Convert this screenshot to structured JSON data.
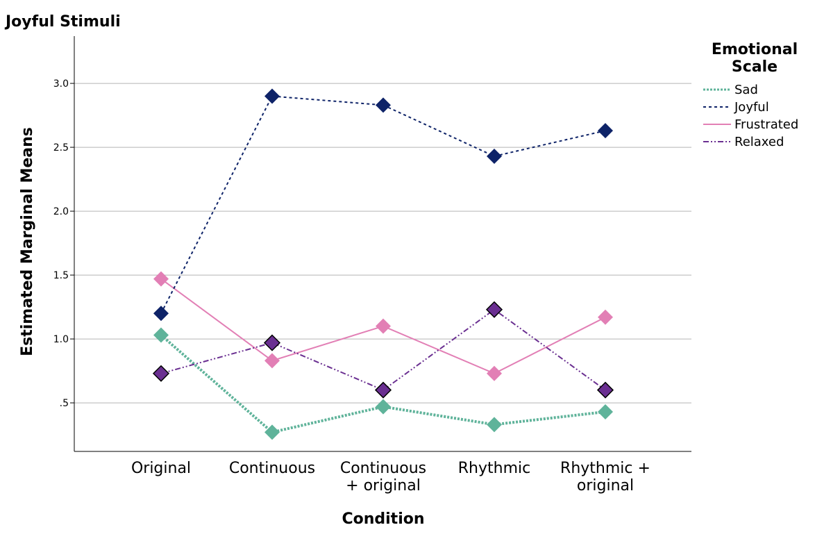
{
  "chart_data": {
    "type": "line",
    "title": "Joyful Stimuli",
    "xlabel": "Condition",
    "ylabel": "Estimated Marginal Means",
    "categories": [
      [
        "Original"
      ],
      [
        "Continuous"
      ],
      [
        "Continuous",
        "+ original"
      ],
      [
        "Rhythmic"
      ],
      [
        "Rhythmic +",
        "original"
      ]
    ],
    "y_ticks": [
      {
        "value": 0.5,
        "label": ".5"
      },
      {
        "value": 1.0,
        "label": "1.0"
      },
      {
        "value": 1.5,
        "label": "1.5"
      },
      {
        "value": 2.0,
        "label": "2.0"
      },
      {
        "value": 2.5,
        "label": "2.5"
      },
      {
        "value": 3.0,
        "label": "3.0"
      }
    ],
    "ylim": [
      0.12,
      3.37
    ],
    "grid": true,
    "legend": {
      "title": [
        "Emotional",
        "Scale"
      ],
      "position": "right"
    },
    "series": [
      {
        "name": "Sad",
        "values": [
          1.03,
          0.27,
          0.47,
          0.33,
          0.43
        ],
        "color": "#5fb39a",
        "dash": "3,2",
        "width": 4,
        "marker_stroke": "none"
      },
      {
        "name": "Joyful",
        "values": [
          1.2,
          2.9,
          2.83,
          2.43,
          2.63
        ],
        "color": "#0e2368",
        "dash": "4,4",
        "width": 2,
        "marker_stroke": "none"
      },
      {
        "name": "Frustrated",
        "values": [
          1.47,
          0.83,
          1.1,
          0.73,
          1.17
        ],
        "color": "#e27fb5",
        "dash": "",
        "width": 2,
        "marker_stroke": "none"
      },
      {
        "name": "Relaxed",
        "values": [
          0.73,
          0.97,
          0.6,
          1.23,
          0.6
        ],
        "color": "#6a2f91",
        "dash": "8,3,2,3,2,3",
        "width": 2,
        "marker_stroke": "#000000"
      }
    ]
  }
}
